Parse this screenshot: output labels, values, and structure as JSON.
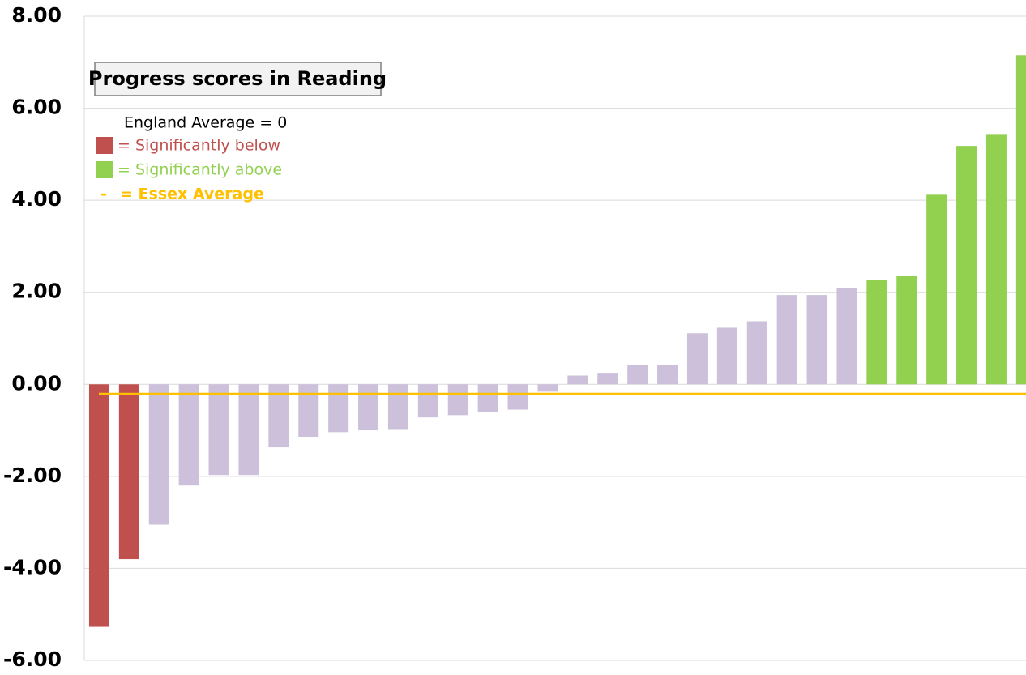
{
  "chart_data": {
    "type": "bar",
    "title": "Progress scores in Reading",
    "annotation": "England Average = 0",
    "values": [
      -5.27,
      -3.8,
      -3.05,
      -2.2,
      -1.97,
      -1.97,
      -1.37,
      -1.14,
      -1.04,
      -1.0,
      -0.99,
      -0.72,
      -0.67,
      -0.6,
      -0.55,
      -0.16,
      0.19,
      0.25,
      0.42,
      0.42,
      1.11,
      1.23,
      1.37,
      1.94,
      1.94,
      2.1,
      2.27,
      2.36,
      4.12,
      5.18,
      5.44,
      7.15
    ],
    "colors": [
      "#c0504d",
      "#c0504d",
      "#ccc0da",
      "#ccc0da",
      "#ccc0da",
      "#ccc0da",
      "#ccc0da",
      "#ccc0da",
      "#ccc0da",
      "#ccc0da",
      "#ccc0da",
      "#ccc0da",
      "#ccc0da",
      "#ccc0da",
      "#ccc0da",
      "#ccc0da",
      "#ccc0da",
      "#ccc0da",
      "#ccc0da",
      "#ccc0da",
      "#ccc0da",
      "#ccc0da",
      "#ccc0da",
      "#ccc0da",
      "#ccc0da",
      "#ccc0da",
      "#92d050",
      "#92d050",
      "#92d050",
      "#92d050",
      "#92d050",
      "#92d050"
    ],
    "legend": [
      {
        "label": "= Significantly below",
        "color": "#c0504d"
      },
      {
        "label": "= Significantly above",
        "color": "#92d050"
      },
      {
        "label": "= Essex Average",
        "color": "#ffc000",
        "marker": "-"
      }
    ],
    "reference_line": {
      "value": -0.21,
      "color": "#ffc000"
    },
    "ylim": [
      -6,
      8
    ],
    "yticks": [
      {
        "value": -6,
        "label": "-6.00"
      },
      {
        "value": -4,
        "label": "-4.00"
      },
      {
        "value": -2,
        "label": "-2.00"
      },
      {
        "value": 0,
        "label": "0.00"
      },
      {
        "value": 2,
        "label": "2.00"
      },
      {
        "value": 4,
        "label": "4.00"
      },
      {
        "value": 6,
        "label": "6.00"
      },
      {
        "value": 8,
        "label": "8.00"
      }
    ],
    "grid": true
  }
}
